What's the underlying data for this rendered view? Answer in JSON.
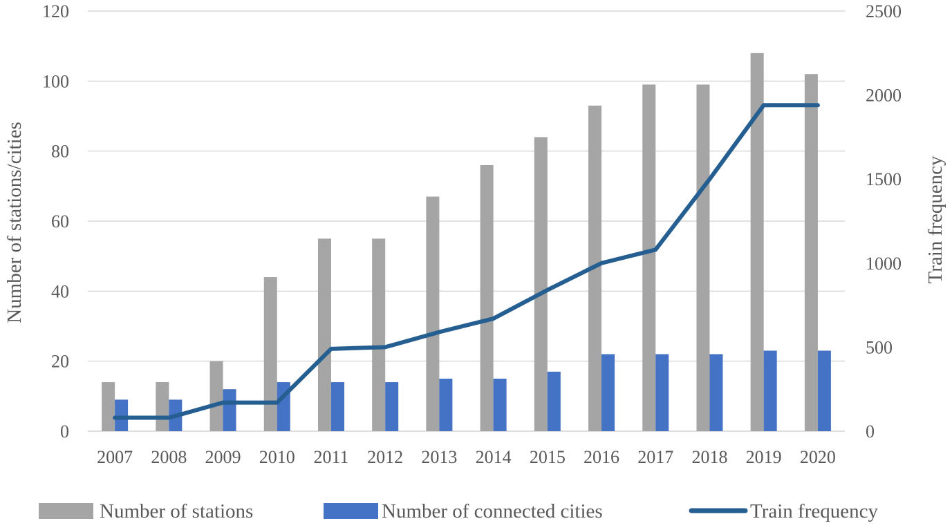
{
  "chart_data": {
    "type": "bar",
    "title": "",
    "categories": [
      "2007",
      "2008",
      "2009",
      "2010",
      "2011",
      "2012",
      "2013",
      "2014",
      "2015",
      "2016",
      "2017",
      "2018",
      "2019",
      "2020"
    ],
    "series": [
      {
        "name": "Number of stations",
        "kind": "bar",
        "axis": "left",
        "color": "#a5a5a5",
        "values": [
          14,
          14,
          20,
          44,
          55,
          55,
          67,
          76,
          84,
          93,
          99,
          99,
          108,
          102
        ]
      },
      {
        "name": "Number of connected cities",
        "kind": "bar",
        "axis": "left",
        "color": "#4472c4",
        "values": [
          9,
          9,
          12,
          14,
          14,
          14,
          15,
          15,
          17,
          22,
          22,
          22,
          23,
          23
        ]
      },
      {
        "name": "Train frequency",
        "kind": "line",
        "axis": "right",
        "color": "#255e91",
        "values": [
          80,
          80,
          170,
          170,
          490,
          500,
          590,
          670,
          840,
          1000,
          1080,
          1500,
          1940,
          1940
        ]
      }
    ],
    "ylabel": "Number of stations/cities",
    "y2label": "Train frequency",
    "ylim": [
      0,
      120
    ],
    "y2lim": [
      0,
      2500
    ],
    "yticks": [
      "0",
      "20",
      "40",
      "60",
      "80",
      "100",
      "120"
    ],
    "y2ticks": [
      "0",
      "500",
      "1000",
      "1500",
      "2000",
      "2500"
    ],
    "grid": true,
    "legend": "bottom"
  }
}
